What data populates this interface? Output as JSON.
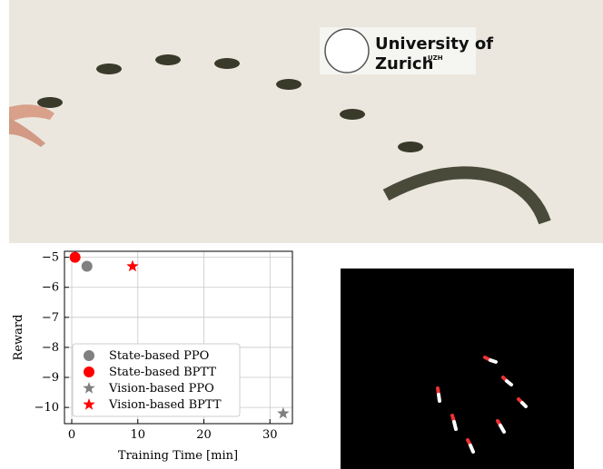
{
  "photo": {
    "logo_title": "University of",
    "logo_name": "Zurich",
    "logo_sup": "UZH"
  },
  "chart_data": {
    "type": "scatter",
    "xlabel": "Training Time [min]",
    "ylabel": "Reward",
    "xlim": [
      -1.1,
      33.4
    ],
    "ylim": [
      -10.54,
      -4.8
    ],
    "xticks": [
      0,
      10,
      20,
      30
    ],
    "yticks": [
      {
        "value": -5,
        "label": "−5"
      },
      {
        "value": -6,
        "label": "−6"
      },
      {
        "value": -7,
        "label": "−7"
      },
      {
        "value": -8,
        "label": "−8"
      },
      {
        "value": -9,
        "label": "−9"
      },
      {
        "value": -10,
        "label": "−10"
      }
    ],
    "grid": true,
    "legend": "lower left",
    "series": [
      {
        "name": "State-based PPO",
        "color": "#808080",
        "marker": "circle",
        "x": [
          2.3
        ],
        "y": [
          -5.3
        ]
      },
      {
        "name": "State-based BPTT",
        "color": "#ff0000",
        "marker": "circle",
        "x": [
          0.5
        ],
        "y": [
          -5.0
        ]
      },
      {
        "name": "Vision-based PPO",
        "color": "#808080",
        "marker": "star",
        "x": [
          32
        ],
        "y": [
          -10.2
        ]
      },
      {
        "name": "Vision-based BPTT",
        "color": "#ff0000",
        "marker": "star",
        "x": [
          9.2
        ],
        "y": [
          -5.3
        ]
      }
    ]
  }
}
